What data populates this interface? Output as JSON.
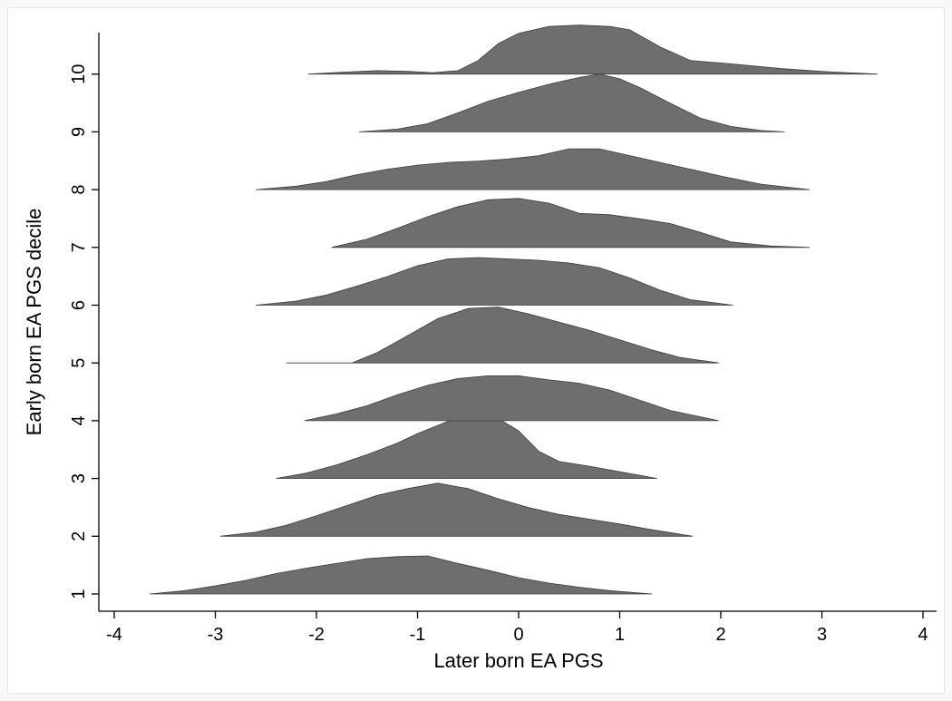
{
  "chart_data": {
    "type": "ridgeline",
    "xlabel": "Later born EA PGS",
    "ylabel": "Early born EA PGS decile",
    "xlim": [
      -4.1,
      4.15
    ],
    "x_ticks": [
      -4,
      -3,
      -2,
      -1,
      0,
      1,
      2,
      3,
      4
    ],
    "y_ticks": [
      1,
      2,
      3,
      4,
      5,
      6,
      7,
      8,
      9,
      10
    ],
    "grid": false,
    "legend": "none",
    "fill_color": "#6e6e6e",
    "series": [
      {
        "decile": 1,
        "x": [
          -3.65,
          -3.3,
          -3.0,
          -2.7,
          -2.4,
          -2.1,
          -1.8,
          -1.5,
          -1.2,
          -0.9,
          -0.6,
          -0.3,
          0.0,
          0.3,
          0.6,
          0.9,
          1.32
        ],
        "density": [
          0.0,
          0.05,
          0.12,
          0.2,
          0.3,
          0.38,
          0.45,
          0.52,
          0.55,
          0.56,
          0.45,
          0.35,
          0.24,
          0.16,
          0.1,
          0.05,
          0.0
        ]
      },
      {
        "decile": 2,
        "x": [
          -2.95,
          -2.6,
          -2.3,
          -2.0,
          -1.7,
          -1.4,
          -1.1,
          -0.8,
          -0.5,
          -0.2,
          0.1,
          0.4,
          0.7,
          1.0,
          1.3,
          1.72
        ],
        "density": [
          0.0,
          0.06,
          0.16,
          0.3,
          0.45,
          0.6,
          0.7,
          0.78,
          0.7,
          0.55,
          0.42,
          0.32,
          0.25,
          0.18,
          0.1,
          0.0
        ]
      },
      {
        "decile": 3,
        "x": [
          -2.4,
          -2.1,
          -1.8,
          -1.5,
          -1.2,
          -1.0,
          -0.8,
          -0.6,
          -0.4,
          -0.2,
          0.0,
          0.2,
          0.4,
          0.7,
          1.0,
          1.37
        ],
        "density": [
          0.0,
          0.08,
          0.2,
          0.35,
          0.52,
          0.66,
          0.78,
          0.9,
          0.95,
          0.88,
          0.7,
          0.4,
          0.25,
          0.18,
          0.1,
          0.0
        ]
      },
      {
        "decile": 4,
        "x": [
          -2.12,
          -1.8,
          -1.5,
          -1.2,
          -0.9,
          -0.6,
          -0.3,
          0.0,
          0.3,
          0.6,
          0.9,
          1.2,
          1.5,
          1.98
        ],
        "density": [
          0.0,
          0.1,
          0.22,
          0.38,
          0.52,
          0.62,
          0.66,
          0.66,
          0.6,
          0.55,
          0.45,
          0.3,
          0.15,
          0.0
        ]
      },
      {
        "decile": 5,
        "x": [
          -2.3,
          -1.65,
          -1.4,
          -1.1,
          -0.8,
          -0.5,
          -0.2,
          0.1,
          0.4,
          0.7,
          1.0,
          1.3,
          1.6,
          1.98
        ],
        "density": [
          0.0,
          0.0,
          0.15,
          0.4,
          0.65,
          0.8,
          0.82,
          0.72,
          0.6,
          0.48,
          0.34,
          0.2,
          0.08,
          0.0
        ]
      },
      {
        "decile": 6,
        "x": [
          -2.6,
          -2.2,
          -1.9,
          -1.6,
          -1.3,
          -1.0,
          -0.7,
          -0.4,
          -0.1,
          0.2,
          0.5,
          0.8,
          1.1,
          1.4,
          1.7,
          2.12
        ],
        "density": [
          0.0,
          0.06,
          0.15,
          0.28,
          0.42,
          0.58,
          0.68,
          0.7,
          0.68,
          0.66,
          0.62,
          0.55,
          0.4,
          0.22,
          0.08,
          0.0
        ]
      },
      {
        "decile": 7,
        "x": [
          -1.85,
          -1.5,
          -1.2,
          -0.9,
          -0.6,
          -0.3,
          0.0,
          0.3,
          0.6,
          0.9,
          1.2,
          1.5,
          1.8,
          2.1,
          2.5,
          2.88
        ],
        "density": [
          0.0,
          0.12,
          0.28,
          0.45,
          0.6,
          0.7,
          0.72,
          0.65,
          0.5,
          0.48,
          0.42,
          0.35,
          0.22,
          0.08,
          0.02,
          0.0
        ]
      },
      {
        "decile": 8,
        "x": [
          -2.6,
          -2.2,
          -1.9,
          -1.6,
          -1.3,
          -1.0,
          -0.7,
          -0.4,
          -0.1,
          0.2,
          0.5,
          0.8,
          1.1,
          1.4,
          1.7,
          2.0,
          2.4,
          2.88
        ],
        "density": [
          0.0,
          0.05,
          0.12,
          0.22,
          0.3,
          0.36,
          0.4,
          0.42,
          0.45,
          0.5,
          0.6,
          0.6,
          0.5,
          0.4,
          0.3,
          0.2,
          0.08,
          0.0
        ]
      },
      {
        "decile": 9,
        "x": [
          -1.58,
          -1.2,
          -0.9,
          -0.6,
          -0.3,
          0.0,
          0.3,
          0.6,
          0.8,
          1.0,
          1.2,
          1.5,
          1.8,
          2.1,
          2.4,
          2.63
        ],
        "density": [
          0.0,
          0.04,
          0.12,
          0.28,
          0.45,
          0.58,
          0.7,
          0.8,
          0.85,
          0.78,
          0.65,
          0.42,
          0.2,
          0.08,
          0.02,
          0.0
        ]
      },
      {
        "decile": 10,
        "x": [
          -2.08,
          -1.7,
          -1.4,
          -1.1,
          -0.85,
          -0.6,
          -0.4,
          -0.2,
          0.0,
          0.3,
          0.6,
          0.9,
          1.1,
          1.4,
          1.7,
          2.1,
          2.6,
          3.1,
          3.55
        ],
        "density": [
          0.0,
          0.03,
          0.05,
          0.04,
          0.02,
          0.05,
          0.2,
          0.45,
          0.6,
          0.7,
          0.72,
          0.7,
          0.65,
          0.4,
          0.2,
          0.15,
          0.08,
          0.03,
          0.0
        ]
      }
    ]
  }
}
